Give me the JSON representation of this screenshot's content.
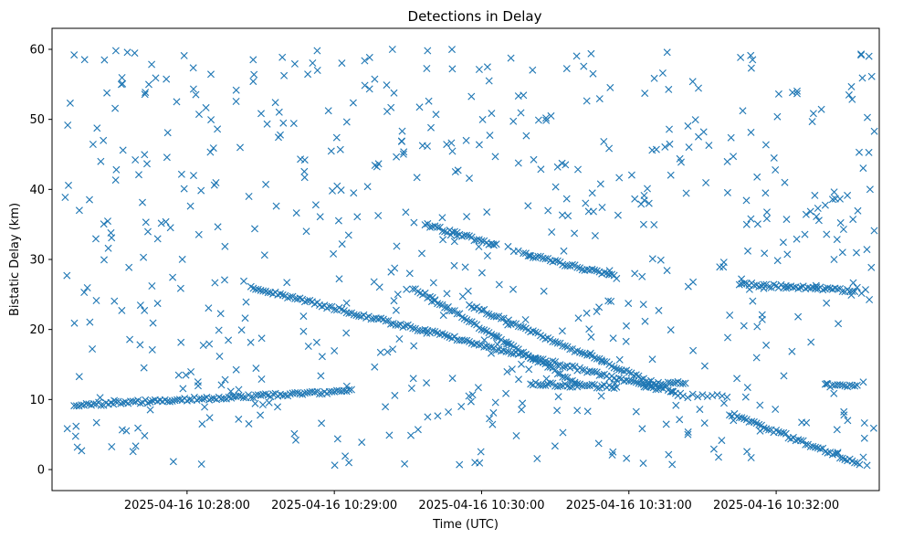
{
  "chart_data": {
    "type": "scatter",
    "title": "Detections in Delay",
    "xlabel": "Time (UTC)",
    "ylabel": "Bistatic Delay (km)",
    "marker": "x",
    "color": "#1f77b4",
    "x_unit": "seconds after 2025-04-16 10:27:00",
    "xlim": [
      5,
      342
    ],
    "ylim": [
      -3,
      63
    ],
    "x_ticks": [
      {
        "value": 60,
        "label": "2025-04-16 10:28:00"
      },
      {
        "value": 120,
        "label": "2025-04-16 10:29:00"
      },
      {
        "value": 180,
        "label": "2025-04-16 10:30:00"
      },
      {
        "value": 240,
        "label": "2025-04-16 10:31:00"
      },
      {
        "value": 300,
        "label": "2025-04-16 10:32:00"
      }
    ],
    "y_ticks": [
      {
        "value": 0,
        "label": "0"
      },
      {
        "value": 10,
        "label": "10"
      },
      {
        "value": 20,
        "label": "20"
      },
      {
        "value": 30,
        "label": "30"
      },
      {
        "value": 40,
        "label": "40"
      },
      {
        "value": 50,
        "label": "50"
      },
      {
        "value": 60,
        "label": "60"
      }
    ],
    "tracks": [
      {
        "name": "track-1",
        "x_start": 14,
        "y_start": 9.2,
        "x_end": 127,
        "y_end": 11.2,
        "step": 1
      },
      {
        "name": "track-2",
        "x_start": 86,
        "y_start": 26.0,
        "x_end": 252,
        "y_end": 11.5,
        "step": 1
      },
      {
        "name": "track-3",
        "x_start": 152,
        "y_start": 26.0,
        "x_end": 220,
        "y_end": 12.0,
        "step": 1
      },
      {
        "name": "track-4",
        "x_start": 175,
        "y_start": 23.5,
        "x_end": 262,
        "y_end": 10.5,
        "step": 1
      },
      {
        "name": "track-5",
        "x_start": 157,
        "y_start": 35.0,
        "x_end": 186,
        "y_end": 32.0,
        "step": 1
      },
      {
        "name": "track-6",
        "x_start": 197,
        "y_start": 30.8,
        "x_end": 235,
        "y_end": 27.5,
        "step": 1
      },
      {
        "name": "track-7",
        "x_start": 246,
        "y_start": 12.0,
        "x_end": 263,
        "y_end": 12.5,
        "step": 1
      },
      {
        "name": "track-8",
        "x_start": 264,
        "y_start": 10.5,
        "x_end": 280,
        "y_end": 10.5,
        "step": 2
      },
      {
        "name": "track-9",
        "x_start": 281,
        "y_start": 8.0,
        "x_end": 334,
        "y_end": 0.8,
        "step": 1
      },
      {
        "name": "track-10",
        "x_start": 285,
        "y_start": 26.5,
        "x_end": 332,
        "y_end": 25.5,
        "step": 1
      },
      {
        "name": "track-11",
        "x_start": 200,
        "y_start": 12.2,
        "x_end": 235,
        "y_end": 11.8,
        "step": 1
      },
      {
        "name": "track-12",
        "x_start": 320,
        "y_start": 12.0,
        "x_end": 333,
        "y_end": 12.0,
        "step": 1
      },
      {
        "name": "track-13",
        "x_start": 314,
        "y_start": 37.0,
        "x_end": 330,
        "y_end": 39.5,
        "step": 3
      }
    ],
    "clutter": {
      "count": 620,
      "x_range": [
        10,
        340
      ],
      "y_range": [
        0.5,
        60
      ],
      "seed": 20250416
    },
    "notable_points": [
      {
        "x": 14,
        "y": 59.2
      },
      {
        "x": 31,
        "y": 59.8
      },
      {
        "x": 113,
        "y": 59.8
      },
      {
        "x": 158,
        "y": 59.8
      },
      {
        "x": 266,
        "y": 55.4
      },
      {
        "x": 246,
        "y": 35.0
      },
      {
        "x": 288,
        "y": 35.0
      },
      {
        "x": 337,
        "y": 0.6
      },
      {
        "x": 340,
        "y": 48.3
      }
    ]
  }
}
